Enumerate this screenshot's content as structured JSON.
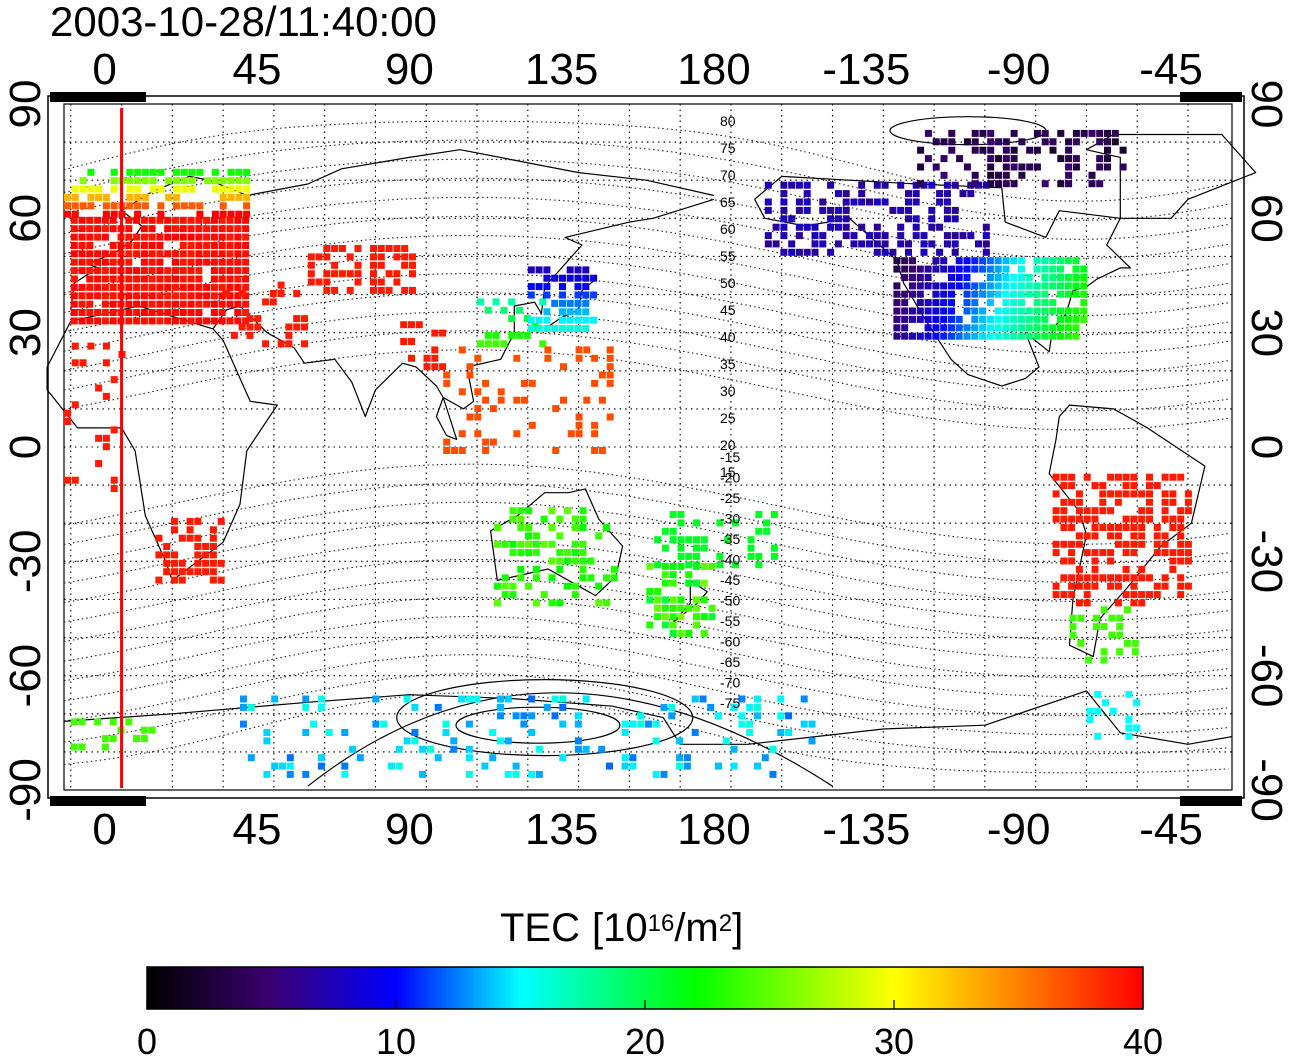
{
  "timestamp": "2003-10-28/11:40:00",
  "map": {
    "top_axis_labels": [
      "0",
      "45",
      "90",
      "135",
      "180",
      "-135",
      "-90",
      "-45"
    ],
    "bottom_axis_labels": [
      "0",
      "45",
      "90",
      "135",
      "180",
      "-135",
      "-90",
      "-45"
    ],
    "left_axis_labels": [
      "90",
      "60",
      "30",
      "0",
      "-30",
      "-60",
      "-90"
    ],
    "right_axis_labels": [
      "90",
      "60",
      "30",
      "0",
      "-30",
      "-60",
      "-90"
    ],
    "top_axis_values": [
      0,
      45,
      90,
      135,
      180,
      225,
      270,
      315
    ],
    "lat_values": [
      90,
      60,
      30,
      0,
      -30,
      -60,
      -90
    ],
    "longitude_range": [
      -12,
      333
    ],
    "latitude_range": [
      -90,
      90
    ],
    "magnetic_latitude_labels": [
      "80",
      "75",
      "70",
      "65",
      "60",
      "55",
      "50",
      "45",
      "40",
      "35",
      "30",
      "25",
      "20",
      "15",
      "-15",
      "-20",
      "-25",
      "-30",
      "-35",
      "-40",
      "-45",
      "-50",
      "-55",
      "-60",
      "-65",
      "-70",
      "-75"
    ],
    "terminator_color": "#ff0000"
  },
  "colorbar": {
    "title_main": "TEC",
    "title_unit_prefix": "[10",
    "title_unit_exp": "16",
    "title_unit_mid": "/m",
    "title_unit_exp2": "2",
    "title_unit_suffix": "]",
    "tick_labels": [
      "0",
      "10",
      "20",
      "30",
      "40"
    ],
    "tick_values": [
      0,
      10,
      20,
      30,
      40
    ],
    "range": [
      0,
      40
    ],
    "colors": [
      "#000000",
      "#3a0070",
      "#0000ff",
      "#00ffff",
      "#00ff00",
      "#ffff00",
      "#ff0000"
    ]
  }
}
